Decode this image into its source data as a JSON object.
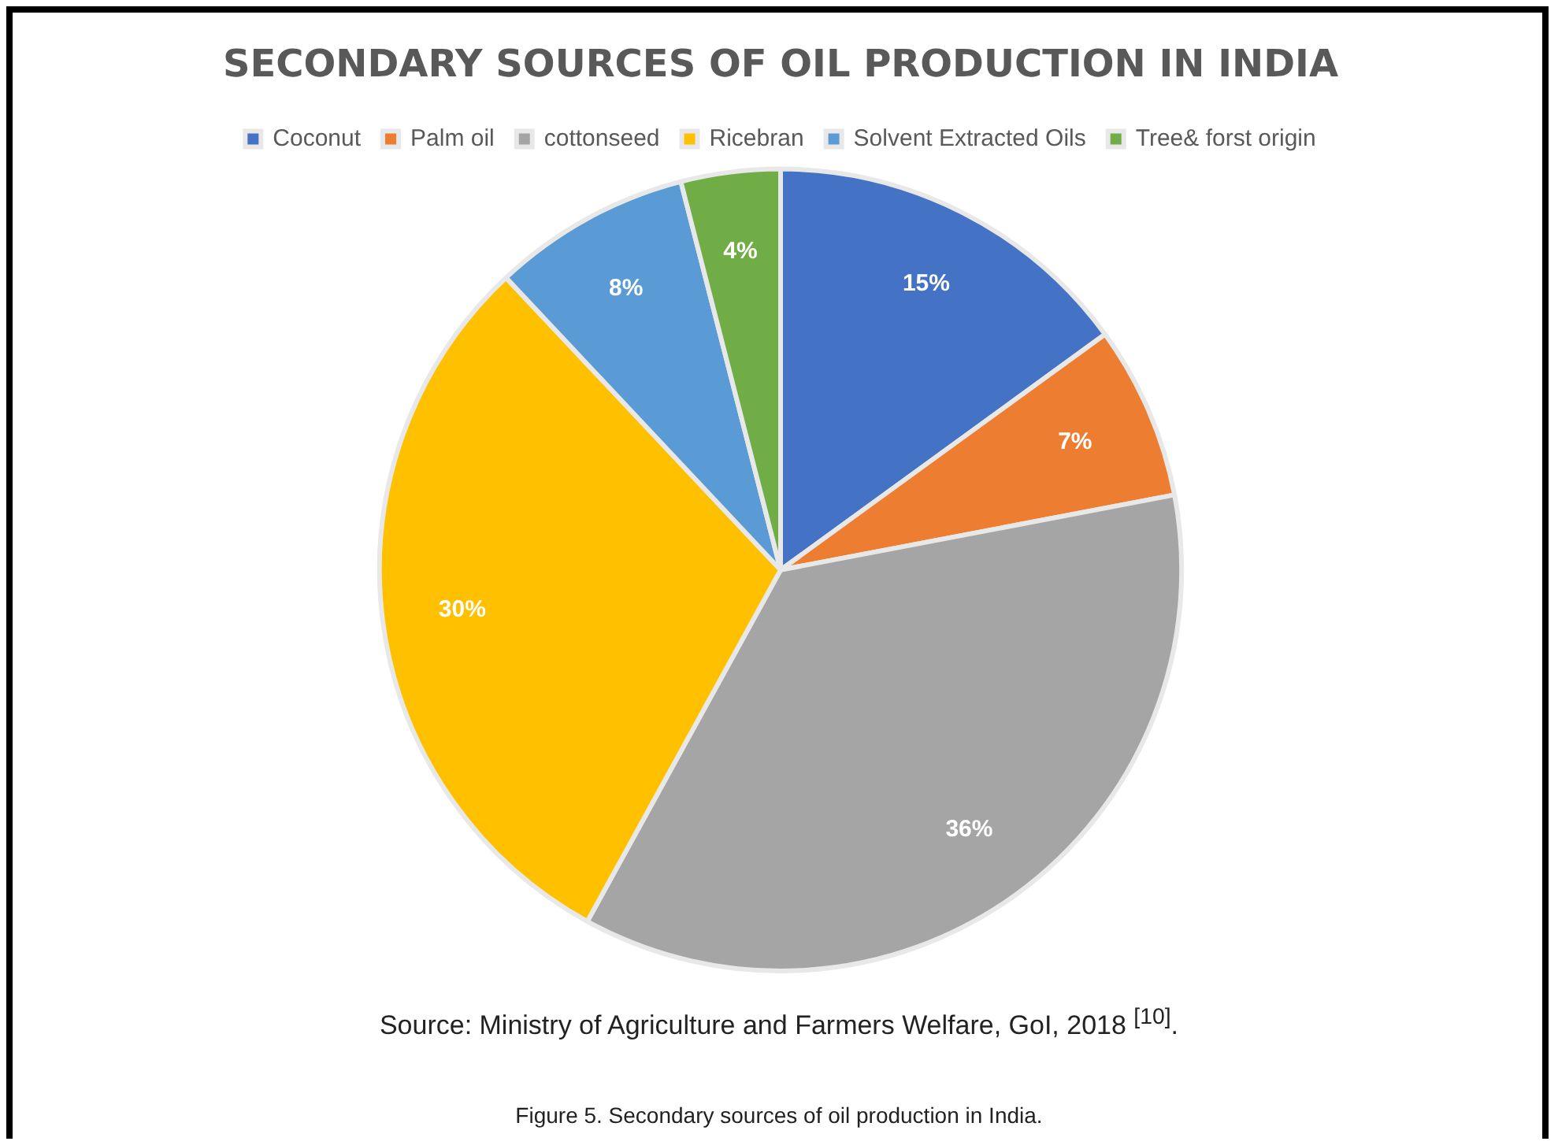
{
  "chart_data": {
    "type": "pie",
    "title": "SECONDARY SOURCES OF OIL PRODUCTION IN INDIA",
    "categories": [
      "Coconut",
      "Palm oil",
      "cottonseed",
      "Ricebran",
      "Solvent Extracted Oils",
      "Tree& forst origin"
    ],
    "values": [
      15,
      7,
      36,
      30,
      8,
      4
    ],
    "colors": [
      "#4472c4",
      "#ed7d31",
      "#a5a5a5",
      "#ffc000",
      "#5b9bd5",
      "#70ad47"
    ],
    "value_labels": [
      "15%",
      "7%",
      "36%",
      "30%",
      "8%",
      "4%"
    ],
    "legend": "top",
    "annotations": [
      "Source: Ministry of Agriculture and Farmers Welfare, GoI, 2018 $^{[10]}$.",
      "Figure 5. Secondary sources of oil production in India."
    ]
  }
}
